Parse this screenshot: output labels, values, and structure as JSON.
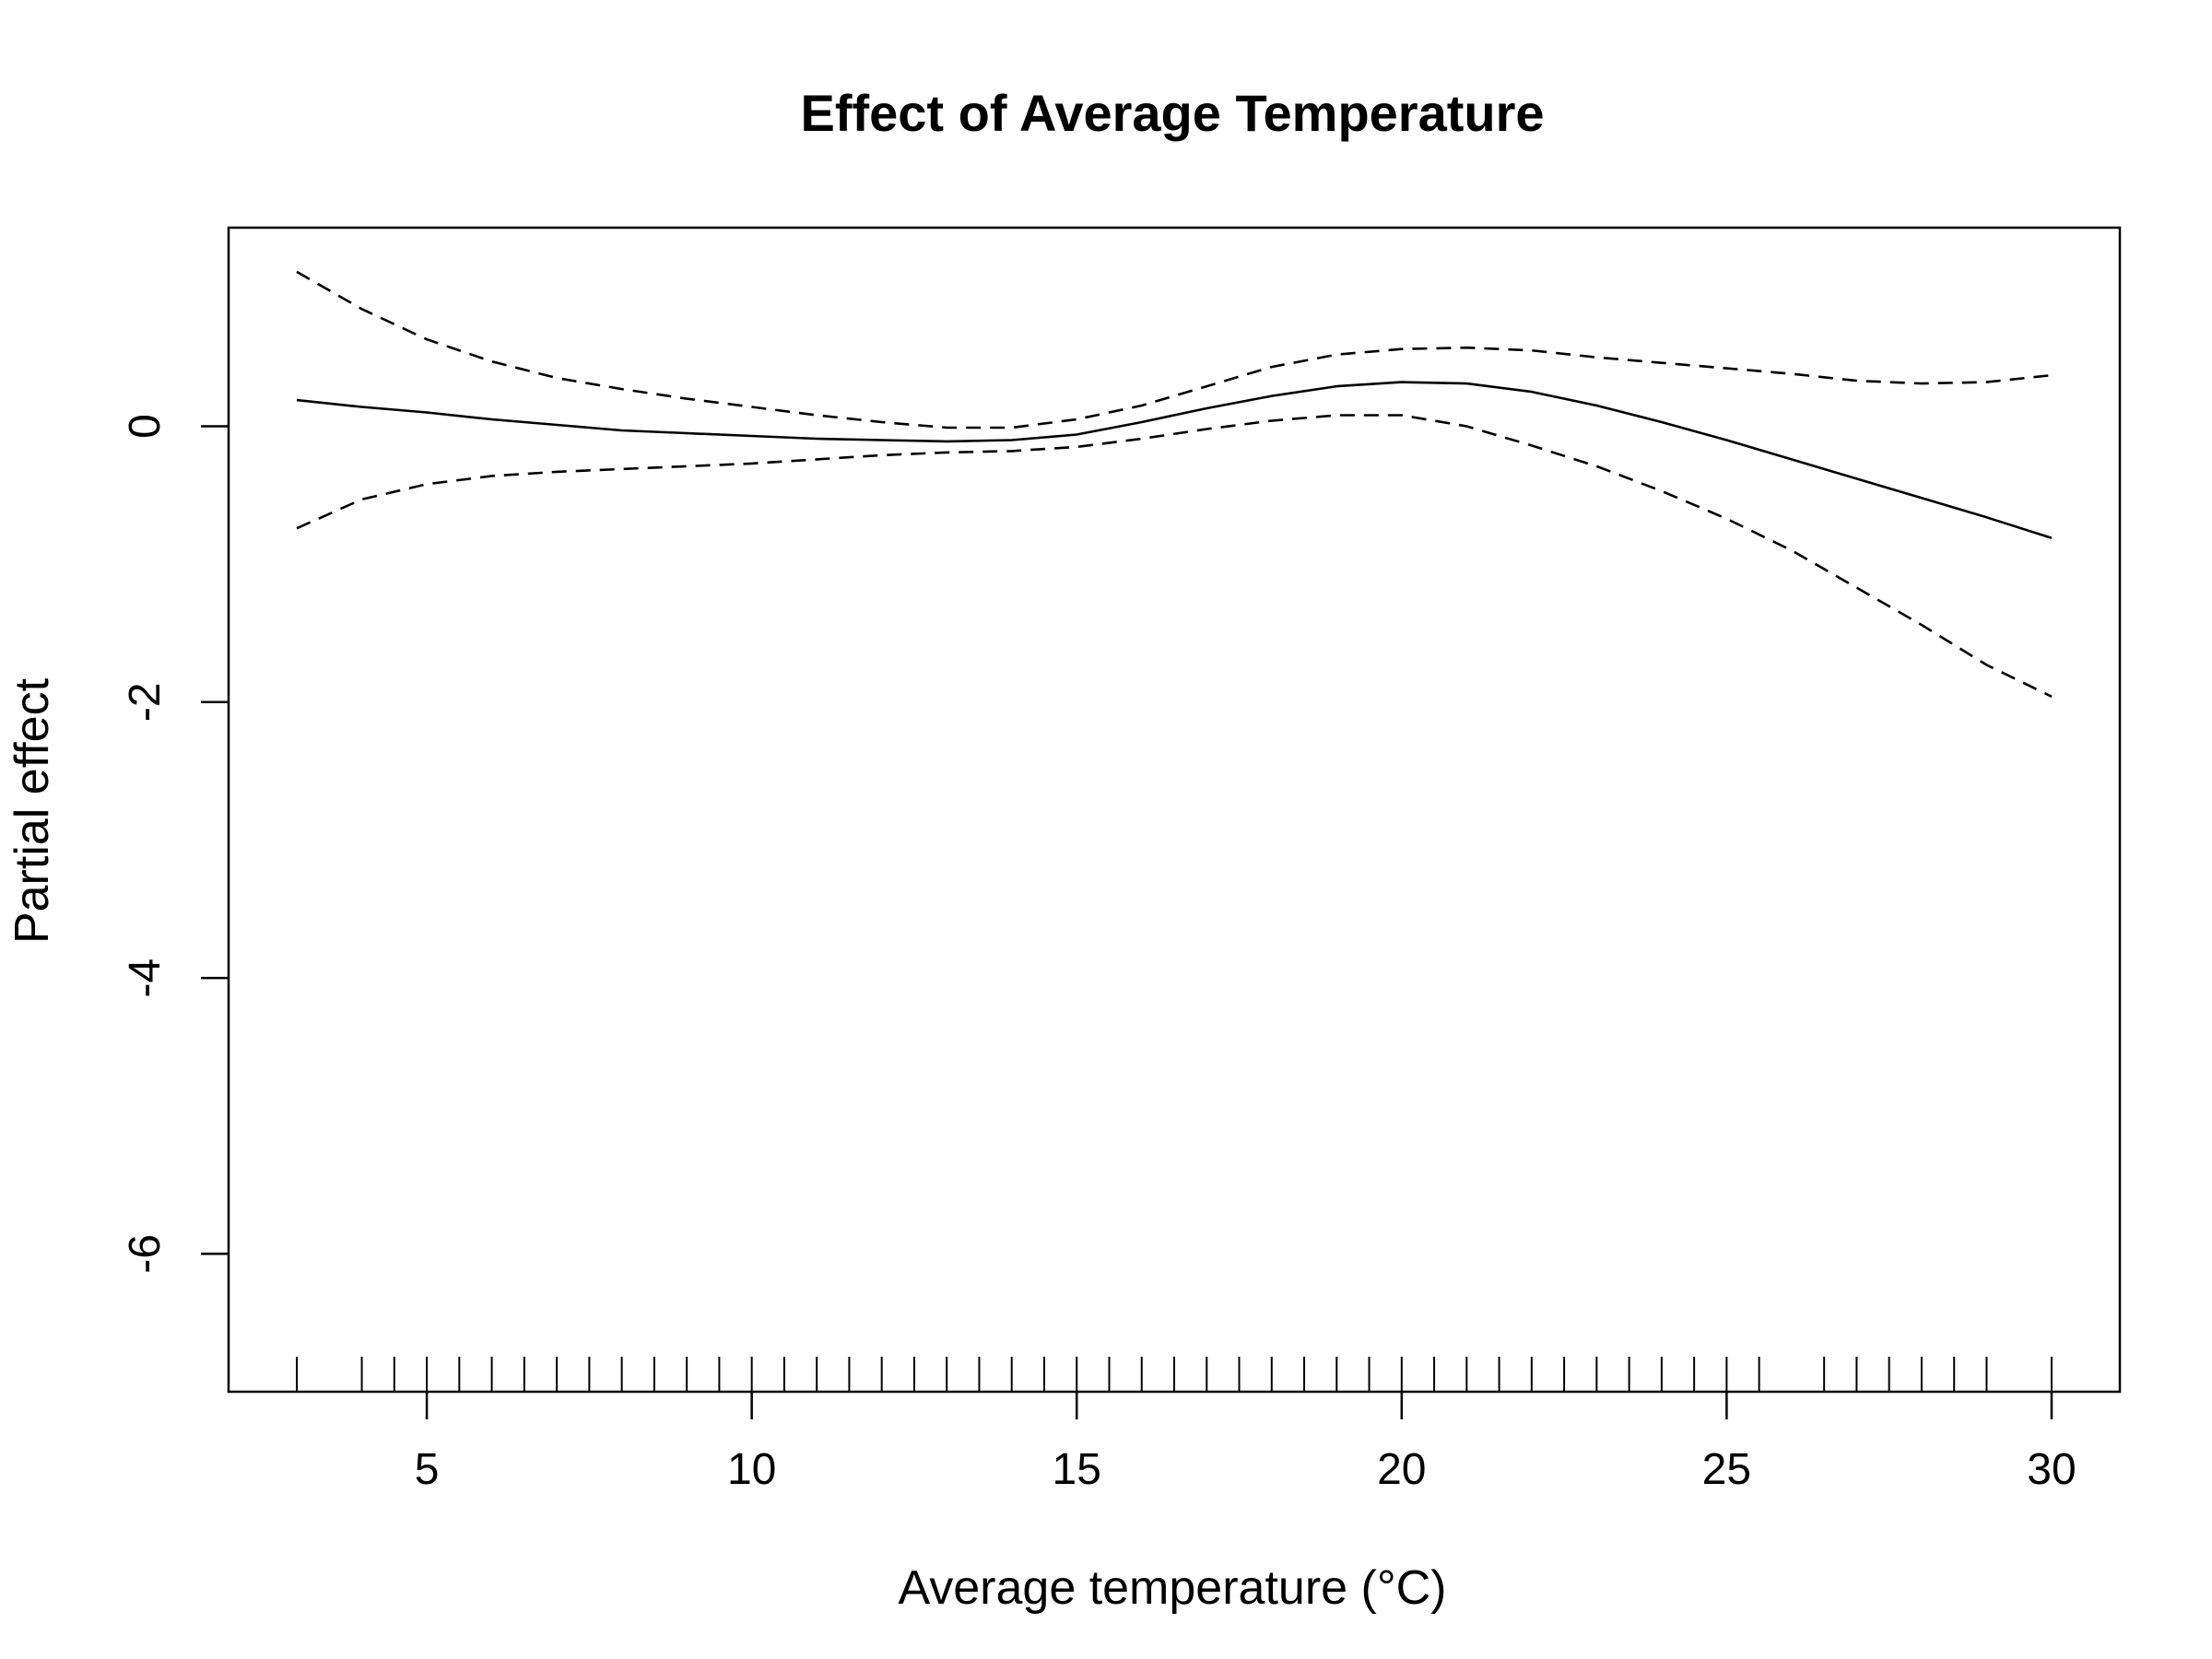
{
  "chart_data": {
    "type": "line",
    "title": "Effect of Average Temperature",
    "xlabel": "Average temperature (°C)",
    "ylabel": "Partial effect",
    "xlim": [
      1.95,
      31.05
    ],
    "ylim": [
      -7.0,
      1.44
    ],
    "x_ticks": [
      5,
      10,
      15,
      20,
      25,
      30
    ],
    "x_tick_labels": [
      "5",
      "10",
      "15",
      "20",
      "25",
      "30"
    ],
    "y_ticks": [
      0,
      -2,
      -4,
      -6
    ],
    "y_tick_labels": [
      "0",
      "-2",
      "-4",
      "-6"
    ],
    "grid": false,
    "legend": "none",
    "series": [
      {
        "style": "solid",
        "x": [
          3,
          4,
          5,
          6,
          7,
          8,
          9,
          10,
          11,
          12,
          13,
          14,
          15,
          16,
          17,
          18,
          19,
          20,
          21,
          22,
          23,
          24,
          25,
          26,
          27,
          28,
          29,
          30
        ],
        "y": [
          0.19,
          0.14,
          0.1,
          0.05,
          0.01,
          -0.03,
          -0.05,
          -0.07,
          -0.09,
          -0.1,
          -0.11,
          -0.1,
          -0.06,
          0.03,
          0.13,
          0.22,
          0.29,
          0.32,
          0.31,
          0.25,
          0.15,
          0.03,
          -0.1,
          -0.24,
          -0.38,
          -0.52,
          -0.66,
          -0.81
        ]
      },
      {
        "style": "dashed",
        "x": [
          3,
          4,
          5,
          6,
          7,
          8,
          9,
          10,
          11,
          12,
          13,
          14,
          15,
          16,
          17,
          18,
          19,
          20,
          21,
          22,
          23,
          24,
          25,
          26,
          27,
          28,
          29,
          30
        ],
        "y": [
          1.12,
          0.85,
          0.63,
          0.47,
          0.35,
          0.27,
          0.2,
          0.14,
          0.08,
          0.03,
          -0.01,
          -0.01,
          0.05,
          0.15,
          0.29,
          0.43,
          0.52,
          0.56,
          0.57,
          0.55,
          0.5,
          0.46,
          0.42,
          0.38,
          0.33,
          0.31,
          0.32,
          0.37
        ]
      },
      {
        "style": "dashed",
        "x": [
          3,
          4,
          5,
          6,
          7,
          8,
          9,
          10,
          11,
          12,
          13,
          14,
          15,
          16,
          17,
          18,
          19,
          20,
          21,
          22,
          23,
          24,
          25,
          26,
          27,
          28,
          29,
          30
        ],
        "y": [
          -0.74,
          -0.53,
          -0.42,
          -0.36,
          -0.33,
          -0.31,
          -0.29,
          -0.27,
          -0.24,
          -0.21,
          -0.19,
          -0.18,
          -0.15,
          -0.09,
          -0.02,
          0.04,
          0.08,
          0.08,
          0.0,
          -0.14,
          -0.29,
          -0.47,
          -0.67,
          -0.9,
          -1.17,
          -1.44,
          -1.73,
          -1.96
        ]
      }
    ],
    "rug": [
      3.0,
      4.0,
      4.5,
      5.0,
      5.5,
      6.0,
      6.5,
      7.0,
      7.5,
      8.0,
      8.5,
      9.0,
      9.5,
      10.0,
      10.5,
      11.0,
      11.5,
      12.0,
      12.5,
      13.0,
      13.5,
      14.0,
      14.5,
      15.0,
      15.5,
      16.0,
      16.5,
      17.0,
      17.5,
      18.0,
      18.5,
      19.0,
      19.5,
      20.0,
      20.5,
      21.0,
      21.5,
      22.0,
      22.5,
      23.0,
      23.5,
      24.0,
      24.5,
      25.0,
      25.5,
      26.5,
      27.0,
      27.5,
      28.0,
      28.5,
      29.0,
      30.0
    ]
  }
}
